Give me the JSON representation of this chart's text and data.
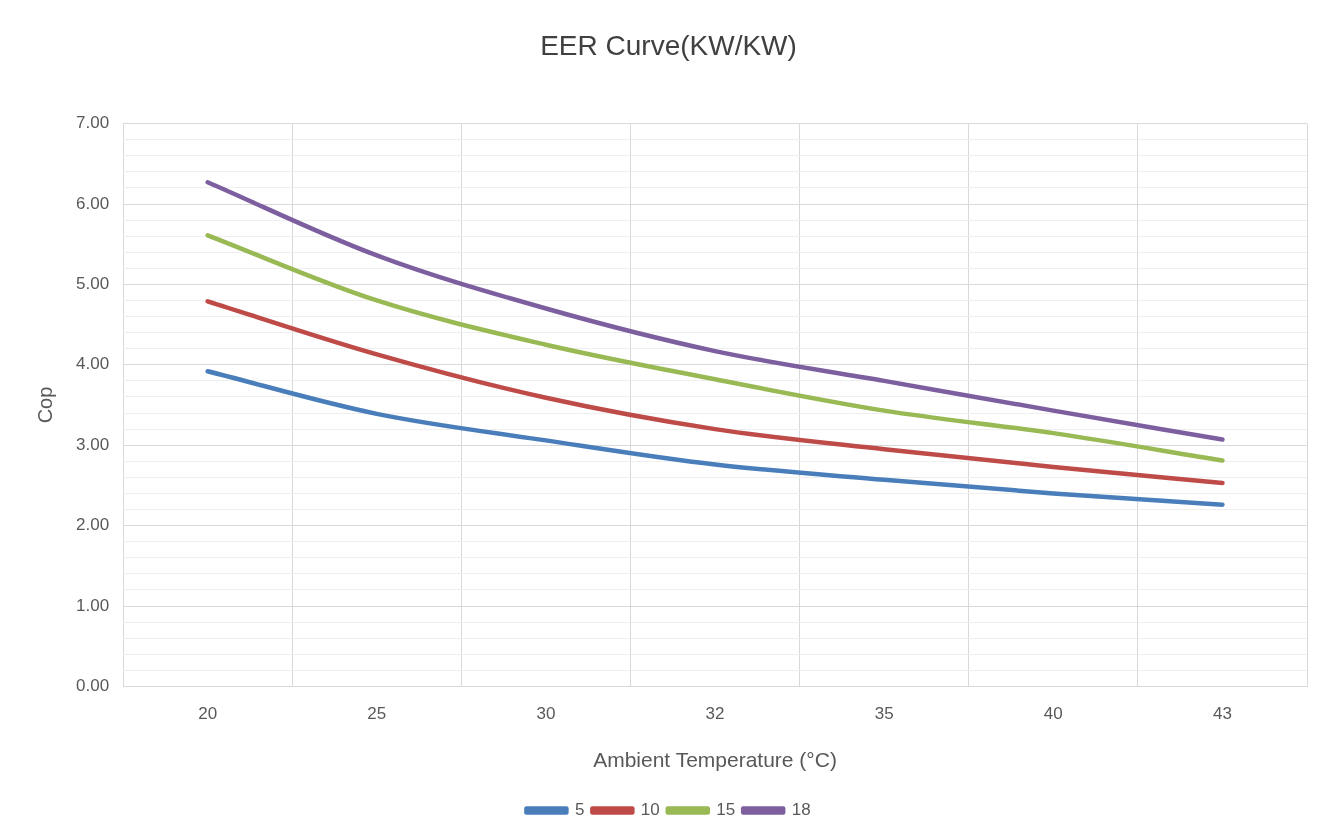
{
  "chart_data": {
    "type": "line",
    "title": "EER Curve(KW/KW)",
    "xlabel": "Ambient Temperature (°C)",
    "ylabel": "Cop",
    "categories": [
      "20",
      "25",
      "30",
      "32",
      "35",
      "40",
      "43"
    ],
    "series": [
      {
        "name": "5",
        "color": "#4a7ebb",
        "values": [
          3.92,
          3.39,
          3.06,
          2.76,
          2.57,
          2.4,
          2.26
        ]
      },
      {
        "name": "10",
        "color": "#be4b48",
        "values": [
          4.79,
          4.13,
          3.59,
          3.2,
          2.95,
          2.73,
          2.53
        ]
      },
      {
        "name": "15",
        "color": "#98b954",
        "values": [
          5.61,
          4.8,
          4.25,
          3.82,
          3.43,
          3.15,
          2.81
        ]
      },
      {
        "name": "18",
        "color": "#7d5fa0",
        "values": [
          6.27,
          5.36,
          4.7,
          4.17,
          3.8,
          3.43,
          3.07
        ]
      }
    ],
    "ylim": [
      0,
      7
    ],
    "yticks": [
      {
        "value": 0,
        "label": "0.00"
      },
      {
        "value": 0.2,
        "label": null
      },
      {
        "value": 0.4,
        "label": null
      },
      {
        "value": 0.6,
        "label": null
      },
      {
        "value": 0.8,
        "label": null
      },
      {
        "value": 1,
        "label": "1.00"
      },
      {
        "value": 1.2,
        "label": null
      },
      {
        "value": 1.4,
        "label": null
      },
      {
        "value": 1.6,
        "label": null
      },
      {
        "value": 1.8,
        "label": null
      },
      {
        "value": 2,
        "label": "2.00"
      },
      {
        "value": 2.2,
        "label": null
      },
      {
        "value": 2.4,
        "label": null
      },
      {
        "value": 2.6,
        "label": null
      },
      {
        "value": 2.8,
        "label": null
      },
      {
        "value": 3,
        "label": "3.00"
      },
      {
        "value": 3.2,
        "label": null
      },
      {
        "value": 3.4,
        "label": null
      },
      {
        "value": 3.6,
        "label": null
      },
      {
        "value": 3.8,
        "label": null
      },
      {
        "value": 4,
        "label": "4.00"
      },
      {
        "value": 4.2,
        "label": null
      },
      {
        "value": 4.4,
        "label": null
      },
      {
        "value": 4.6,
        "label": null
      },
      {
        "value": 4.8,
        "label": null
      },
      {
        "value": 5,
        "label": "5.00"
      },
      {
        "value": 5.2,
        "label": null
      },
      {
        "value": 5.4,
        "label": null
      },
      {
        "value": 5.6,
        "label": null
      },
      {
        "value": 5.8,
        "label": null
      },
      {
        "value": 6,
        "label": "6.00"
      },
      {
        "value": 6.2,
        "label": null
      },
      {
        "value": 6.4,
        "label": null
      },
      {
        "value": 6.6,
        "label": null
      },
      {
        "value": 6.8,
        "label": null
      },
      {
        "value": 7,
        "label": "7.00"
      }
    ],
    "grid": true,
    "legend": "bottom",
    "marker": "none",
    "line_style": "solid"
  }
}
